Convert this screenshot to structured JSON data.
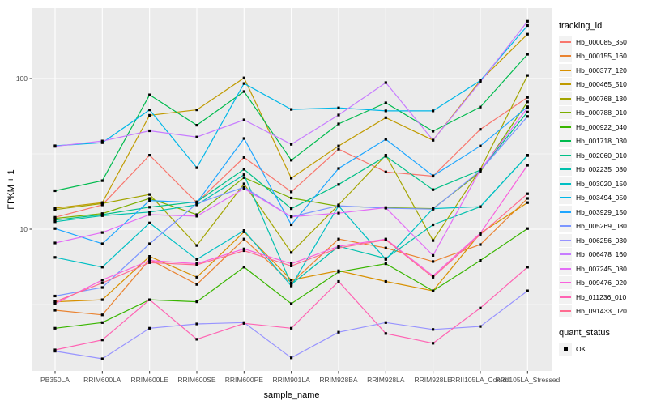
{
  "chart_data": {
    "type": "line",
    "title": "",
    "xlabel": "sample_name",
    "ylabel": "FPKM + 1",
    "y_scale": "log10",
    "ylim": [
      1.15,
      294
    ],
    "grid": true,
    "legend_position": "right",
    "point_shape": "filled-square",
    "point_color": "#000000",
    "y_ticks": [
      {
        "value": 100,
        "label": "100"
      },
      {
        "value": 10,
        "label": "10"
      }
    ],
    "y_minor_gridlines": [
      3.162,
      31.62
    ],
    "categories": [
      "PB350LA",
      "RRIM600LA",
      "RRIM600LE",
      "RRIM600SE",
      "RRIM600PE",
      "RRIM901LA",
      "RRIM928BA",
      "RRIM928LA",
      "RRIM928LE",
      "RRII105LA_Control",
      "RRII105LA_Stressed"
    ],
    "series": [
      {
        "name": "Hb_000085_350",
        "color": "#F8766D",
        "values": [
          12.0,
          14.5,
          31,
          15,
          30,
          17.7,
          34,
          24,
          22.5,
          46,
          75
        ]
      },
      {
        "name": "Hb_000155_160",
        "color": "#EA8331",
        "values": [
          2.9,
          2.7,
          6.3,
          4.3,
          8.6,
          4.4,
          8.6,
          7.5,
          6.1,
          7.9,
          16
        ]
      },
      {
        "name": "Hb_000377_120",
        "color": "#D89000",
        "values": [
          3.3,
          3.4,
          6.6,
          4.8,
          9.6,
          4.6,
          5.3,
          4.5,
          3.9,
          9.4,
          15
        ]
      },
      {
        "name": "Hb_000465_510",
        "color": "#C09B00",
        "values": [
          13.8,
          15,
          57,
          62,
          101,
          21.8,
          35.7,
          55,
          39,
          97,
          197
        ]
      },
      {
        "name": "Hb_000768_130",
        "color": "#A3A500",
        "values": [
          13.5,
          14.8,
          17,
          7.8,
          20,
          7.0,
          14.5,
          31,
          8.4,
          25,
          105
        ]
      },
      {
        "name": "Hb_000788_010",
        "color": "#7CAE00",
        "values": [
          11.8,
          12.7,
          16,
          12.5,
          22,
          16.1,
          14.2,
          13.9,
          13.7,
          24,
          70
        ]
      },
      {
        "name": "Hb_000922_040",
        "color": "#39B600",
        "values": [
          2.2,
          2.4,
          3.4,
          3.3,
          5.6,
          3.2,
          5.2,
          5.9,
          3.9,
          6.2,
          10.1
        ]
      },
      {
        "name": "Hb_001718_030",
        "color": "#00BB4E",
        "values": [
          18,
          21,
          78,
          49,
          82,
          28.7,
          50,
          69,
          44.7,
          64.7,
          145
        ]
      },
      {
        "name": "Hb_002060_010",
        "color": "#00C087",
        "values": [
          11.5,
          12.5,
          14,
          15.2,
          25,
          13.7,
          19.8,
          30.5,
          18.3,
          24.7,
          60
        ]
      },
      {
        "name": "Hb_002235_080",
        "color": "#00C0AC",
        "values": [
          11.2,
          12.3,
          13,
          14.5,
          23,
          4.3,
          7.7,
          6.4,
          10.7,
          14.1,
          31
        ]
      },
      {
        "name": "Hb_003020_150",
        "color": "#00BFC4",
        "values": [
          6.5,
          5.6,
          11,
          6.3,
          9.8,
          4.2,
          14.3,
          6.3,
          13.7,
          14.1,
          30.8
        ]
      },
      {
        "name": "Hb_003494_050",
        "color": "#00B7E8",
        "values": [
          35.8,
          37.5,
          62,
          25.6,
          92.7,
          62.4,
          63.9,
          61,
          61,
          97,
          225
        ]
      },
      {
        "name": "Hb_003929_150",
        "color": "#1FA6FF",
        "values": [
          10.1,
          8.0,
          15.5,
          15,
          40,
          10.7,
          25.3,
          39.5,
          22.6,
          35.7,
          65
        ]
      },
      {
        "name": "Hb_005269_080",
        "color": "#7C96FF",
        "values": [
          3.6,
          4.1,
          8,
          14.8,
          19,
          12.1,
          14.3,
          13.8,
          13.6,
          24.5,
          56
        ]
      },
      {
        "name": "Hb_006256_030",
        "color": "#9793FF",
        "values": [
          1.55,
          1.38,
          2.2,
          2.35,
          2.4,
          1.4,
          2.07,
          2.4,
          2.16,
          2.26,
          3.9
        ]
      },
      {
        "name": "Hb_006478_160",
        "color": "#C77CFF",
        "values": [
          35.5,
          38.5,
          45,
          40.9,
          53.2,
          36.6,
          57.3,
          94,
          39,
          95,
          240
        ]
      },
      {
        "name": "Hb_007245_080",
        "color": "#E36EF6",
        "values": [
          8.1,
          9.5,
          12.5,
          12.2,
          18.6,
          12.1,
          12.8,
          13.9,
          6.7,
          24.7,
          64
        ]
      },
      {
        "name": "Hb_009476_020",
        "color": "#F962DD",
        "values": [
          3.2,
          4.6,
          6.2,
          5.9,
          7.4,
          5.9,
          7.7,
          8.6,
          4.9,
          9.4,
          26.6
        ]
      },
      {
        "name": "Hb_011236_010",
        "color": "#FF63B3",
        "values": [
          1.58,
          1.84,
          3.4,
          1.86,
          2.37,
          2.2,
          4.5,
          2.03,
          1.75,
          3.0,
          5.6
        ]
      },
      {
        "name": "Hb_091433_020",
        "color": "#FF6C91",
        "values": [
          3.3,
          4.4,
          6.0,
          5.8,
          7.2,
          5.7,
          7.5,
          8.5,
          4.8,
          9.2,
          17.2
        ]
      }
    ]
  },
  "legend": {
    "tracking_title": "tracking_id",
    "quant_title": "quant_status",
    "quant_items": [
      {
        "label": "OK"
      }
    ]
  },
  "colors": {
    "panel_bg": "#EBEBEB",
    "grid_major": "#FFFFFF",
    "grid_minor": "#FFFFFF",
    "tick_mark": "#333333",
    "tick_label": "#4D4D4D",
    "legend_key_bg": "#F2F2F2",
    "point": "#000000"
  }
}
